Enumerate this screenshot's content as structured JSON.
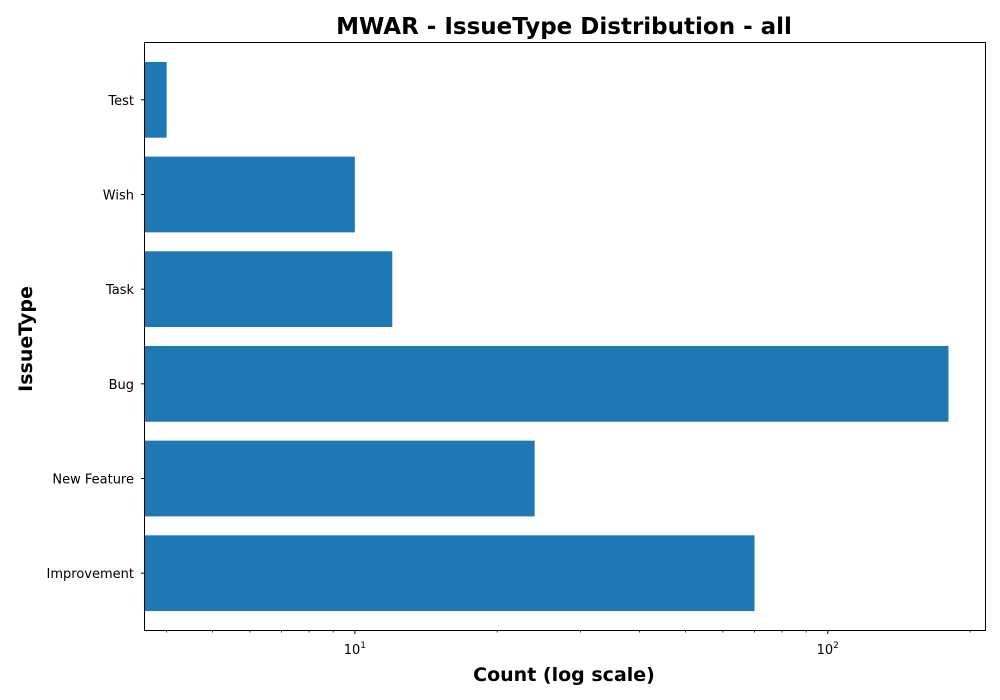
{
  "chart_data": {
    "type": "bar",
    "orientation": "horizontal",
    "title": "MWAR - IssueType Distribution - all",
    "xlabel": "Count (log scale)",
    "ylabel": "IssueType",
    "x_scale": "log",
    "xlim": [
      3.6,
      215
    ],
    "categories": [
      "Improvement",
      "New Feature",
      "Bug",
      "Task",
      "Wish",
      "Test"
    ],
    "values": [
      70,
      24,
      180,
      12,
      10,
      4
    ],
    "bar_color": "#1f77b4",
    "grid": false,
    "legend": "none",
    "major_ticks": [
      {
        "value": 10,
        "base": "10",
        "exp": "1"
      },
      {
        "value": 100,
        "base": "10",
        "exp": "2"
      }
    ],
    "minor_ticks": [
      4,
      5,
      6,
      7,
      8,
      9,
      20,
      30,
      40,
      50,
      60,
      70,
      80,
      90,
      200
    ]
  }
}
